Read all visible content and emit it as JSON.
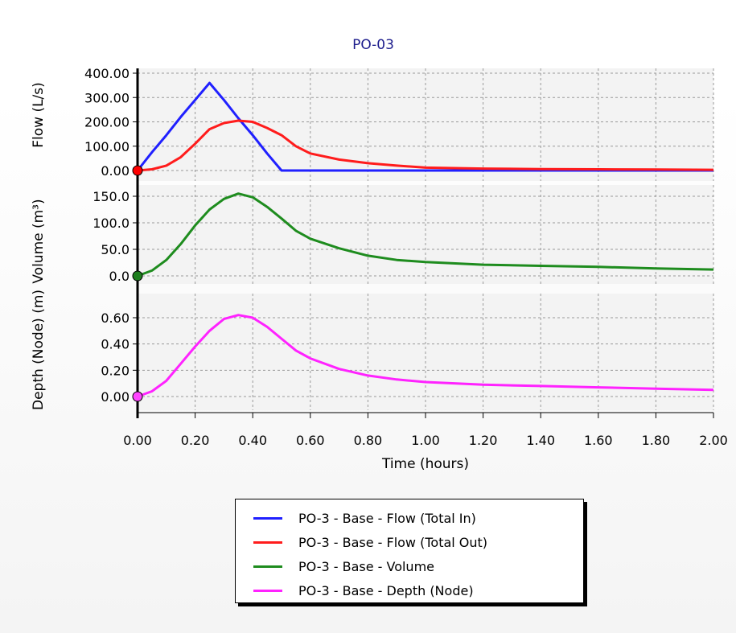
{
  "chart_data": {
    "type": "line",
    "title": "PO-03",
    "xlabel": "Time (hours)",
    "xlim": [
      0,
      2.0
    ],
    "x_ticks": [
      "0.00",
      "0.20",
      "0.40",
      "0.60",
      "0.80",
      "1.00",
      "1.20",
      "1.40",
      "1.60",
      "1.80",
      "2.00"
    ],
    "grid": true,
    "legend_position": "bottom-center",
    "panels": [
      {
        "ylabel": "Flow (L/s)",
        "ylim": [
          0,
          400
        ],
        "y_ticks": [
          "0.00",
          "100.00",
          "200.00",
          "300.00",
          "400.00"
        ],
        "series": [
          {
            "name": "PO-3 - Base - Flow (Total In)",
            "color": "#2020ff",
            "x": [
              0,
              0.05,
              0.1,
              0.15,
              0.2,
              0.25,
              0.3,
              0.35,
              0.4,
              0.45,
              0.5,
              1.0,
              2.0
            ],
            "y": [
              0,
              75,
              145,
              220,
              290,
              360,
              290,
              215,
              145,
              70,
              0,
              0,
              0
            ]
          },
          {
            "name": "PO-3 - Base - Flow (Total Out)",
            "color": "#ff1c1c",
            "x": [
              0,
              0.05,
              0.1,
              0.15,
              0.2,
              0.25,
              0.3,
              0.35,
              0.4,
              0.45,
              0.5,
              0.55,
              0.6,
              0.7,
              0.8,
              0.9,
              1.0,
              1.2,
              1.4,
              1.6,
              1.8,
              2.0
            ],
            "y": [
              0,
              5,
              20,
              55,
              110,
              170,
              195,
              205,
              200,
              175,
              145,
              100,
              70,
              45,
              30,
              20,
              12,
              8,
              6,
              5,
              4,
              3
            ]
          }
        ],
        "start_marker": {
          "color": "#ff0000",
          "value": 0
        }
      },
      {
        "ylabel": "Volume (m³)",
        "ylim": [
          0,
          150
        ],
        "y_ticks": [
          "0.0",
          "50.0",
          "100.0",
          "150.0"
        ],
        "series": [
          {
            "name": "PO-3 - Base - Volume",
            "color": "#1e8c1e",
            "x": [
              0,
              0.05,
              0.1,
              0.15,
              0.2,
              0.25,
              0.3,
              0.35,
              0.4,
              0.45,
              0.5,
              0.55,
              0.6,
              0.7,
              0.8,
              0.9,
              1.0,
              1.2,
              1.4,
              1.6,
              1.8,
              2.0
            ],
            "y": [
              0,
              10,
              30,
              60,
              95,
              125,
              145,
              155,
              148,
              130,
              108,
              85,
              70,
              52,
              38,
              30,
              26,
              21,
              19,
              17,
              14,
              12
            ]
          }
        ],
        "start_marker": {
          "color": "#1e7f1e",
          "value": 0
        }
      },
      {
        "ylabel": "Depth (Node) (m)",
        "ylim": [
          0,
          0.6
        ],
        "y_ticks": [
          "0.00",
          "0.20",
          "0.40",
          "0.60"
        ],
        "series": [
          {
            "name": "PO-3 - Base - Depth (Node)",
            "color": "#ff22ff",
            "x": [
              0,
              0.05,
              0.1,
              0.15,
              0.2,
              0.25,
              0.3,
              0.35,
              0.4,
              0.45,
              0.5,
              0.55,
              0.6,
              0.7,
              0.8,
              0.9,
              1.0,
              1.2,
              1.4,
              1.6,
              1.8,
              2.0
            ],
            "y": [
              0,
              0.04,
              0.12,
              0.25,
              0.38,
              0.5,
              0.59,
              0.62,
              0.6,
              0.53,
              0.44,
              0.35,
              0.29,
              0.21,
              0.16,
              0.13,
              0.11,
              0.09,
              0.08,
              0.07,
              0.06,
              0.05
            ]
          }
        ],
        "start_marker": {
          "color": "#ff44ff",
          "value": 0
        }
      }
    ]
  },
  "legend": {
    "items": [
      {
        "label": "PO-3 - Base - Flow (Total In)",
        "color": "#2020ff"
      },
      {
        "label": "PO-3 - Base - Flow (Total Out)",
        "color": "#ff1c1c"
      },
      {
        "label": "PO-3 - Base - Volume",
        "color": "#1e8c1e"
      },
      {
        "label": "PO-3 - Base - Depth (Node)",
        "color": "#ff22ff"
      }
    ]
  }
}
